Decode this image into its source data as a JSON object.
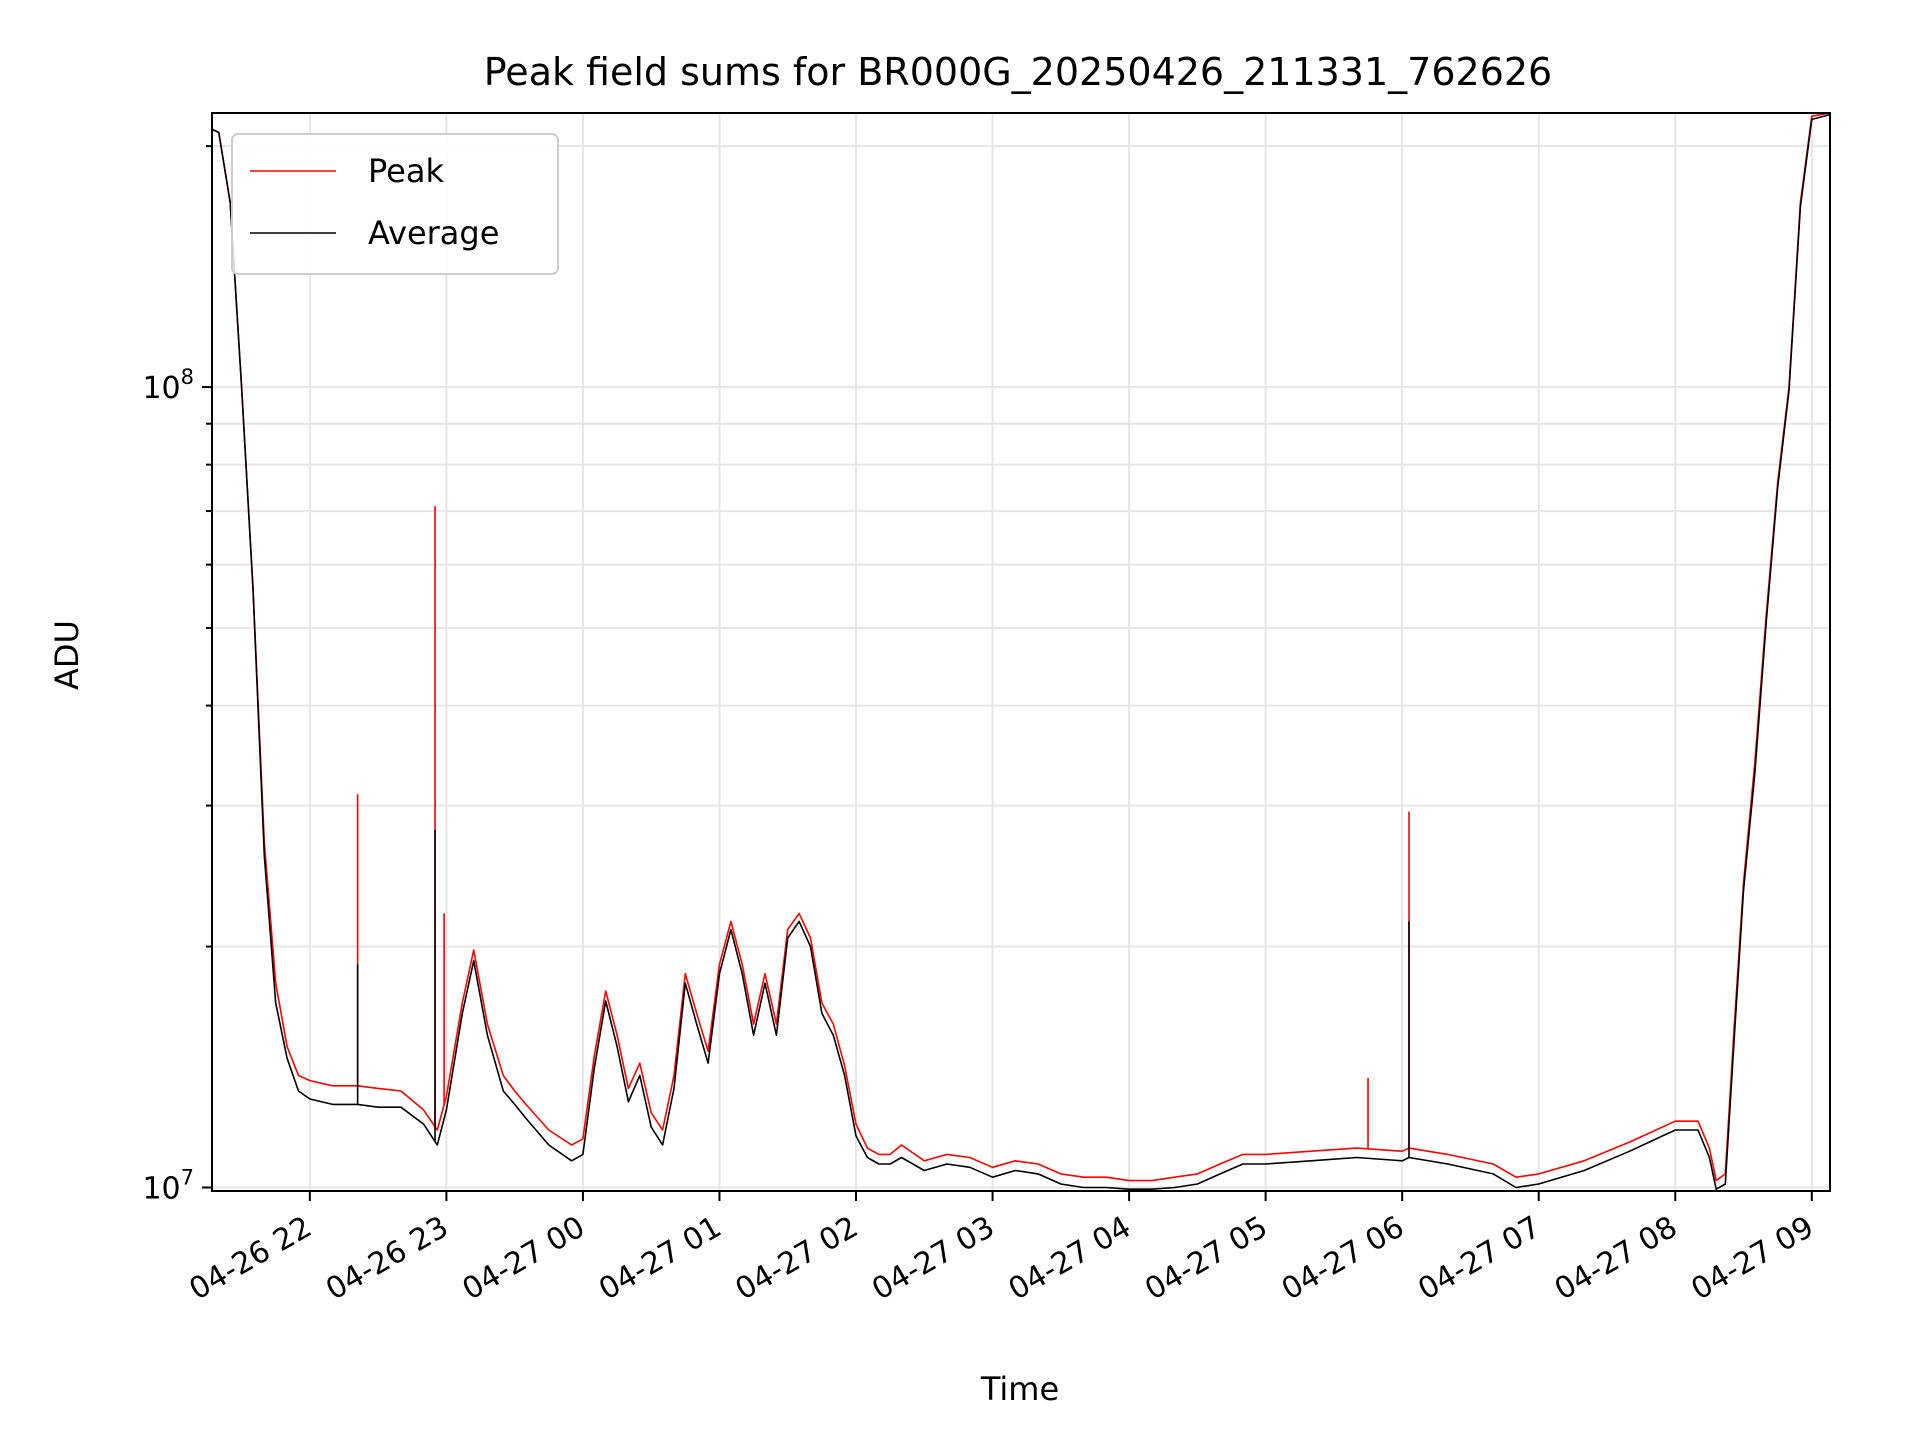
{
  "chart_data": {
    "type": "line",
    "title": "Peak field sums for BR000G_20250426_211331_762626",
    "xlabel": "Time",
    "ylabel": "ADU",
    "yscale": "log",
    "ylim": [
      9900000,
      220000000
    ],
    "xlim": [
      "04-26 21:17",
      "04-27 09:08"
    ],
    "grid": true,
    "legend": "upper-left",
    "x_ticks": [
      "04-26 22",
      "04-26 23",
      "04-27 00",
      "04-27 01",
      "04-27 02",
      "04-27 03",
      "04-27 04",
      "04-27 05",
      "04-27 06",
      "04-27 07",
      "04-27 08",
      "04-27 09"
    ],
    "y_ticks": [
      {
        "value": 10000000,
        "base": "10",
        "exp": "7"
      },
      {
        "value": 100000000,
        "base": "10",
        "exp": "8"
      }
    ],
    "x": [
      "04-26 21:17",
      "04-26 21:20",
      "04-26 21:25",
      "04-26 21:30",
      "04-26 21:35",
      "04-26 21:40",
      "04-26 21:45",
      "04-26 21:50",
      "04-26 21:55",
      "04-26 22:00",
      "04-26 22:10",
      "04-26 22:21",
      "04-26 22:30",
      "04-26 22:40",
      "04-26 22:50",
      "04-26 22:56",
      "04-26 23:00",
      "04-26 23:07",
      "04-26 23:12",
      "04-26 23:18",
      "04-26 23:25",
      "04-26 23:30",
      "04-26 23:35",
      "04-26 23:45",
      "04-26 23:55",
      "04-27 00:00",
      "04-27 00:05",
      "04-27 00:10",
      "04-27 00:15",
      "04-27 00:20",
      "04-27 00:25",
      "04-27 00:30",
      "04-27 00:35",
      "04-27 00:40",
      "04-27 00:45",
      "04-27 00:50",
      "04-27 00:55",
      "04-27 01:00",
      "04-27 01:05",
      "04-27 01:10",
      "04-27 01:15",
      "04-27 01:20",
      "04-27 01:25",
      "04-27 01:30",
      "04-27 01:35",
      "04-27 01:40",
      "04-27 01:45",
      "04-27 01:50",
      "04-27 01:55",
      "04-27 02:00",
      "04-27 02:05",
      "04-27 02:10",
      "04-27 02:15",
      "04-27 02:20",
      "04-27 02:30",
      "04-27 02:40",
      "04-27 02:50",
      "04-27 03:00",
      "04-27 03:10",
      "04-27 03:20",
      "04-27 03:30",
      "04-27 03:40",
      "04-27 03:50",
      "04-27 04:00",
      "04-27 04:10",
      "04-27 04:20",
      "04-27 04:30",
      "04-27 04:40",
      "04-27 04:50",
      "04-27 05:00",
      "04-27 05:20",
      "04-27 05:40",
      "04-27 06:00",
      "04-27 06:03",
      "04-27 06:20",
      "04-27 06:40",
      "04-27 06:50",
      "04-27 07:00",
      "04-27 07:20",
      "04-27 07:40",
      "04-27 08:00",
      "04-27 08:10",
      "04-27 08:15",
      "04-27 08:18",
      "04-27 08:22",
      "04-27 08:26",
      "04-27 08:30",
      "04-27 08:35",
      "04-27 08:40",
      "04-27 08:45",
      "04-27 08:50",
      "04-27 08:55",
      "04-27 09:00",
      "04-27 09:08"
    ],
    "series": [
      {
        "name": "Peak",
        "color": "#ff0000",
        "values": [
          210000000,
          208000000,
          170000000,
          100000000,
          56000000,
          27000000,
          18000000,
          15000000,
          13800000,
          13600000,
          13400000,
          13400000,
          13300000,
          13200000,
          12500000,
          11800000,
          13000000,
          17000000,
          19800000,
          16000000,
          13800000,
          13200000,
          12700000,
          11800000,
          11300000,
          11500000,
          14600000,
          17600000,
          15500000,
          13300000,
          14300000,
          12400000,
          11800000,
          13800000,
          18500000,
          16500000,
          14800000,
          19000000,
          21500000,
          19000000,
          16000000,
          18500000,
          16000000,
          21000000,
          22000000,
          20500000,
          17000000,
          16000000,
          14200000,
          12000000,
          11200000,
          11000000,
          11000000,
          11300000,
          10800000,
          11000000,
          10900000,
          10600000,
          10800000,
          10700000,
          10400000,
          10300000,
          10300000,
          10200000,
          10200000,
          10300000,
          10400000,
          10700000,
          11000000,
          11000000,
          11100000,
          11200000,
          11100000,
          11200000,
          11000000,
          10700000,
          10300000,
          10400000,
          10800000,
          11400000,
          12100000,
          12100000,
          11200000,
          10200000,
          10400000,
          16000000,
          24000000,
          34000000,
          52000000,
          76000000,
          100000000,
          170000000,
          218000000,
          220000000
        ]
      },
      {
        "name": "Average",
        "color": "#000000",
        "values": [
          210000000,
          208000000,
          170000000,
          100000000,
          56000000,
          26000000,
          17000000,
          14500000,
          13200000,
          12900000,
          12700000,
          12700000,
          12600000,
          12600000,
          12000000,
          11300000,
          12500000,
          16500000,
          19200000,
          15500000,
          13200000,
          12700000,
          12200000,
          11300000,
          10800000,
          11000000,
          14100000,
          17100000,
          15000000,
          12800000,
          13800000,
          11900000,
          11300000,
          13300000,
          18000000,
          16000000,
          14300000,
          18500000,
          21000000,
          18500000,
          15500000,
          18000000,
          15500000,
          20500000,
          21500000,
          20000000,
          16500000,
          15500000,
          13800000,
          11600000,
          10900000,
          10700000,
          10700000,
          10900000,
          10500000,
          10700000,
          10600000,
          10300000,
          10500000,
          10400000,
          10100000,
          10000000,
          10000000,
          9950000,
          9950000,
          10000000,
          10100000,
          10400000,
          10700000,
          10700000,
          10800000,
          10900000,
          10800000,
          10900000,
          10700000,
          10400000,
          10000000,
          10100000,
          10500000,
          11100000,
          11800000,
          11800000,
          10900000,
          9950000,
          10100000,
          15500000,
          23500000,
          33000000,
          51000000,
          75000000,
          99000000,
          168000000,
          216000000,
          219000000
        ]
      }
    ],
    "spikes": [
      {
        "series": "Peak",
        "x": "04-26 22:21",
        "value": 31000000
      },
      {
        "series": "Average",
        "x": "04-26 22:21",
        "value": 19000000
      },
      {
        "series": "Peak",
        "x": "04-26 22:55",
        "value": 71000000
      },
      {
        "series": "Average",
        "x": "04-26 22:55",
        "value": 28000000
      },
      {
        "series": "Peak",
        "x": "04-26 22:59",
        "value": 22000000
      },
      {
        "series": "Peak",
        "x": "04-27 06:03",
        "value": 29500000
      },
      {
        "series": "Average",
        "x": "04-27 06:03",
        "value": 21500000
      },
      {
        "series": "Peak",
        "x": "04-27 05:45",
        "value": 13700000
      }
    ]
  }
}
